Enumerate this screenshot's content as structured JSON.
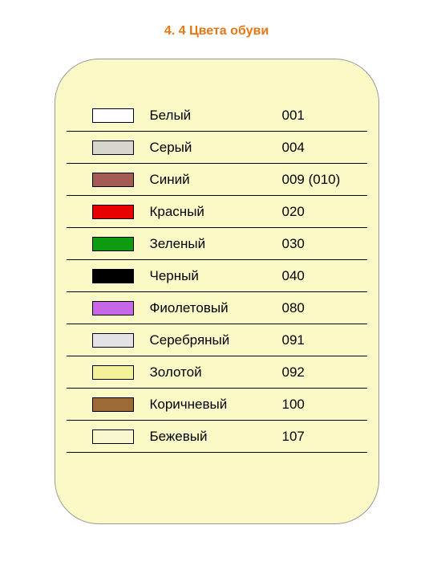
{
  "title": "4. 4 Цвета обуви",
  "title_color": "#e67817",
  "panel_background": "#fbfac6",
  "panel_border_color": "#999999",
  "row_border_color": "#000000",
  "swatch_border_color": "#000000",
  "font_size_title": 16,
  "font_size_cell": 17,
  "rows": [
    {
      "name": "Белый",
      "code": "001",
      "swatch": "#ffffff"
    },
    {
      "name": "Серый",
      "code": "004",
      "swatch": "#d6d5ce"
    },
    {
      "name": "Синий",
      "code": "009 (010)",
      "swatch": "#a65a56"
    },
    {
      "name": "Красный",
      "code": "020",
      "swatch": "#e60000"
    },
    {
      "name": "Зеленый",
      "code": "030",
      "swatch": "#0f9b0f"
    },
    {
      "name": "Черный",
      "code": "040",
      "swatch": "#000000"
    },
    {
      "name": "Фиолетовый",
      "code": "080",
      "swatch": "#c866e8"
    },
    {
      "name": "Серебряный",
      "code": "091",
      "swatch": "#e3e2e6"
    },
    {
      "name": "Золотой",
      "code": "092",
      "swatch": "#f4f19a"
    },
    {
      "name": "Коричневый",
      "code": "100",
      "swatch": "#9b6a37"
    },
    {
      "name": "Бежевый",
      "code": "107",
      "swatch": "#faf6d0"
    }
  ]
}
